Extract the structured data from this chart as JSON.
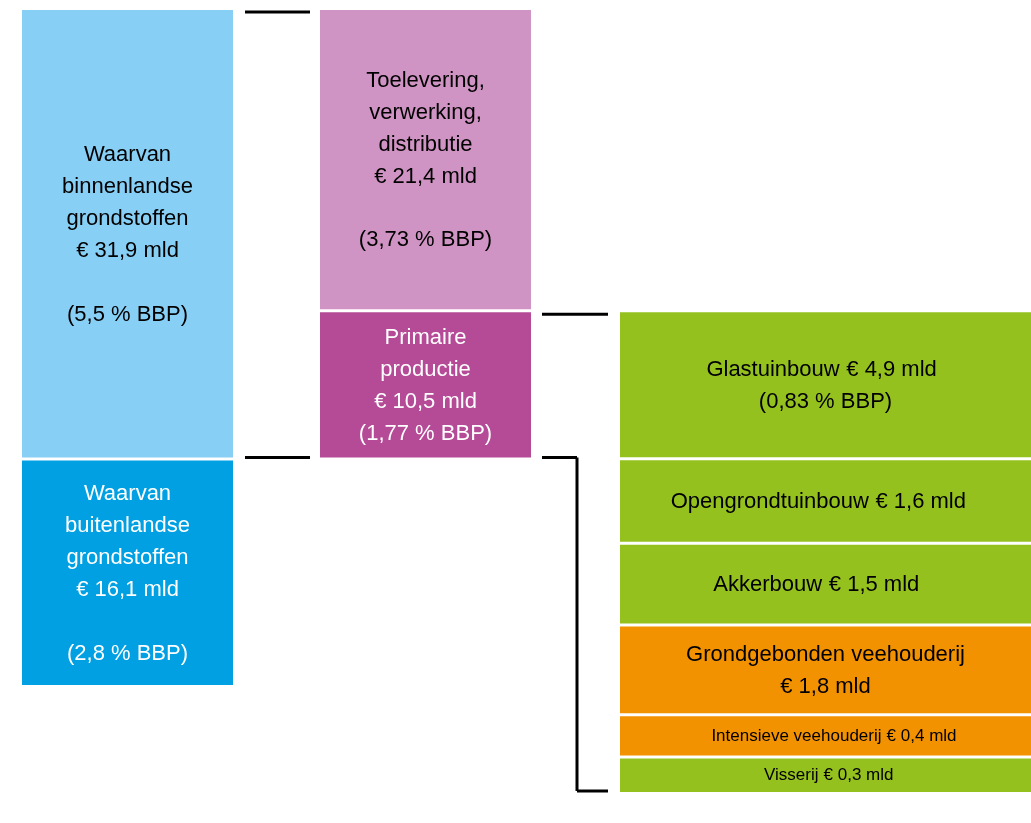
{
  "chart_data": {
    "type": "other",
    "categories": [
      "Waarvan\nbinnenlandse\ngrondstoffen\n",
      "Waarvan\nbuitenlandse\ngrondstoffen\n",
      "Toelevering,\nverwerking,\ndistributie\n",
      "Primaire\nproductie\n",
      "Glastuinbouw",
      "Opengrondtuinbouw",
      "Akkerbouw",
      "Grondgebonden veehouderij\n",
      "Intensieve veehouderij",
      "Visserij"
    ],
    "values": [
      31.9,
      16.1,
      21.4,
      10.5,
      4.9,
      1.6,
      1.5,
      1.8,
      0.4,
      0.3
    ],
    "value_labels": [
      "€ 31,9 mld",
      "€ 16,1 mld",
      "€ 21,4 mld",
      "€ 10,5 mld",
      "€ 4,9 mld",
      "€ 1,6 mld",
      "€ 1,5 mld",
      "€ 1,8 mld",
      "€ 0,4 mld",
      "€ 0,3 mld"
    ],
    "annotations": [
      "(5,5 % BBP)",
      "(2,8 % BBP)",
      "(3,73 % BBP)",
      "(1,77 % BBP)",
      "(0,83 % BBP)"
    ],
    "colors": [
      "#87cff5",
      "#00a0e3",
      "#d094c4",
      "#b54a97",
      "#95c11f",
      "#95c11f",
      "#95c11f",
      "#f39200",
      "#f39200",
      "#95c11f"
    ]
  }
}
